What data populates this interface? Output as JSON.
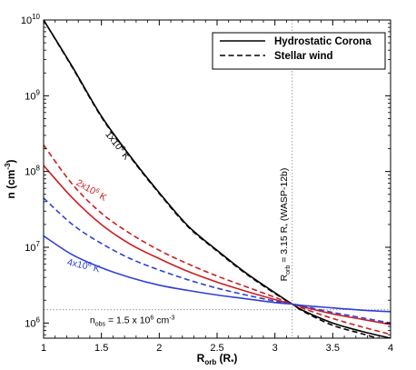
{
  "chart_data": {
    "type": "line",
    "xlim": [
      1,
      4
    ],
    "ylim_log10": [
      5.8,
      10
    ],
    "x_ticks": [
      1,
      1.5,
      2,
      2.5,
      3,
      3.5,
      4
    ],
    "x_tick_labels": [
      "1",
      "1.5",
      "2",
      "2.5",
      "3",
      "3.5",
      "4"
    ],
    "y_ticks_exp": [
      6,
      7,
      8,
      9,
      10
    ],
    "y_tick_base": "10",
    "xlabel": {
      "main": "R",
      "sub": "orb",
      "rest": " (R",
      "sub2": "*",
      "close": ")"
    },
    "ylabel": {
      "main": "n (cm",
      "sup": "-3",
      "close": ")"
    },
    "legend": [
      {
        "label": "Hydrostatic Corona",
        "style": "solid"
      },
      {
        "label": "Stellar wind",
        "style": "dashed"
      }
    ],
    "series": [
      {
        "temperature_K": 1000000,
        "model": "Hydrostatic Corona",
        "color": "#000000",
        "style": "solid",
        "x": [
          1,
          1.25,
          1.5,
          1.75,
          2,
          2.25,
          2.5,
          2.75,
          3,
          3.15,
          3.25,
          3.5,
          3.75,
          4
        ],
        "log_n": [
          10.0,
          9.38,
          8.73,
          8.2,
          7.72,
          7.28,
          6.96,
          6.66,
          6.4,
          6.25,
          6.16,
          6.0,
          5.89,
          5.8
        ]
      },
      {
        "temperature_K": 1000000,
        "model": "Stellar wind",
        "color": "#000000",
        "style": "dashed",
        "x": [
          1,
          1.25,
          1.5,
          1.75,
          2,
          2.25,
          2.5,
          2.75,
          3,
          3.15,
          3.25,
          3.5,
          3.75,
          4
        ],
        "log_n": [
          10.0,
          9.37,
          8.72,
          8.19,
          7.71,
          7.27,
          6.95,
          6.65,
          6.39,
          6.25,
          6.15,
          5.97,
          5.86,
          5.75
        ]
      },
      {
        "temperature_K": 2000000,
        "model": "Hydrostatic Corona",
        "color": "#cc1f1f",
        "style": "solid",
        "x": [
          1,
          1.25,
          1.5,
          1.75,
          2,
          2.25,
          2.5,
          2.75,
          3,
          3.15,
          3.25,
          3.5,
          3.75,
          4
        ],
        "log_n": [
          8.08,
          7.65,
          7.3,
          7.04,
          6.85,
          6.68,
          6.54,
          6.42,
          6.31,
          6.25,
          6.21,
          6.12,
          6.05,
          5.98
        ]
      },
      {
        "temperature_K": 2000000,
        "model": "Stellar wind",
        "color": "#cc1f1f",
        "style": "dashed",
        "x": [
          1,
          1.25,
          1.5,
          1.75,
          2,
          2.25,
          2.5,
          2.75,
          3,
          3.15,
          3.25,
          3.5,
          3.75,
          4
        ],
        "log_n": [
          8.35,
          7.83,
          7.45,
          7.18,
          6.96,
          6.78,
          6.62,
          6.48,
          6.34,
          6.25,
          6.19,
          6.06,
          5.95,
          5.85
        ]
      },
      {
        "temperature_K": 4000000,
        "model": "Hydrostatic Corona",
        "color": "#2f3fd6",
        "style": "solid",
        "x": [
          1,
          1.25,
          1.5,
          1.75,
          2,
          2.25,
          2.5,
          2.75,
          3,
          3.15,
          3.25,
          3.5,
          3.75,
          4
        ],
        "log_n": [
          7.15,
          6.9,
          6.73,
          6.6,
          6.5,
          6.43,
          6.37,
          6.32,
          6.27,
          6.25,
          6.23,
          6.2,
          6.17,
          6.15
        ]
      },
      {
        "temperature_K": 4000000,
        "model": "Stellar wind",
        "color": "#2f3fd6",
        "style": "dashed",
        "x": [
          1,
          1.25,
          1.5,
          1.75,
          2,
          2.25,
          2.5,
          2.75,
          3,
          3.15,
          3.25,
          3.5,
          3.75,
          4
        ],
        "log_n": [
          7.65,
          7.3,
          7.05,
          6.85,
          6.7,
          6.57,
          6.46,
          6.37,
          6.29,
          6.25,
          6.22,
          6.14,
          6.07,
          6.0
        ]
      }
    ],
    "curve_labels": [
      {
        "base": "1x10",
        "exp": "6",
        "unit": " K",
        "color": "#000000",
        "x": 1.62,
        "log_n": 8.32,
        "angle": 52
      },
      {
        "base": "2x10",
        "exp": "6",
        "unit": " K",
        "color": "#cc1f1f",
        "x": 1.4,
        "log_n": 7.72,
        "angle": 30
      },
      {
        "base": "4x10",
        "exp": "6",
        "unit": " K",
        "color": "#2f3fd6",
        "x": 1.34,
        "log_n": 6.72,
        "angle": 13
      }
    ],
    "reference_lines": {
      "vertical_x": 3.15,
      "horizontal_log_n": 6.176
    },
    "annotations": {
      "vertical": {
        "main": "R",
        "sub": "orb",
        "rest": " = 3.15 R",
        "sub2": "*",
        "tail": " (WASP-12b)",
        "x": 3.105,
        "log_n": 7.3
      },
      "horizontal": {
        "main": "n",
        "sub": "obs",
        "rest": " = 1.5 x 10",
        "sup": "6",
        "tail": " cm",
        "sup2": "-3",
        "x": 1.4,
        "log_n": 6.0
      }
    }
  }
}
